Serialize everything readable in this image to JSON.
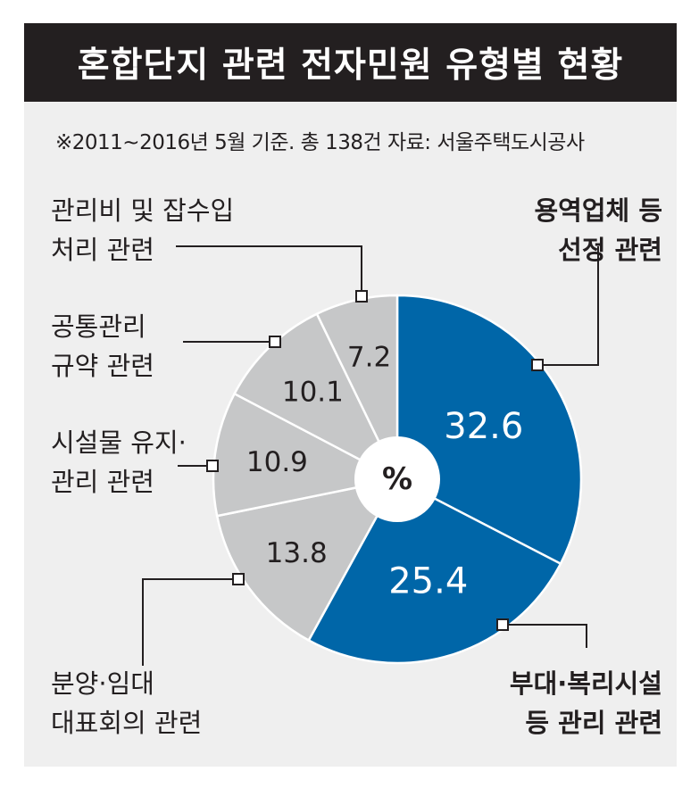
{
  "title": "혼합단지 관련 전자민원 유형별 현황",
  "subtitle": "※2011~2016년 5월 기준. 총 138건   자료: 서울주택도시공사",
  "center_label": "%",
  "colors": {
    "header_bg": "#231f20",
    "panel_bg": "#efefef",
    "highlight": "#0066a8",
    "muted": "#c6c7c8"
  },
  "labels": {
    "service": [
      "용역업체 등",
      "선정 관련"
    ],
    "facility": [
      "부대·복리시설",
      "등 관리 관련"
    ],
    "presale": [
      "분양·임대",
      "대표회의 관련"
    ],
    "maintenance": [
      "시설물 유지·",
      "관리 관련"
    ],
    "rules": [
      "공통관리",
      "규약 관련"
    ],
    "fees": [
      "관리비 및 잡수입",
      "처리 관련"
    ]
  },
  "chart_data": {
    "type": "pie",
    "unit": "%",
    "slices": [
      {
        "label": "용역업체 등 선정 관련",
        "value": 32.6,
        "display": "32.6",
        "color": "#0066a8",
        "text_color": "#ffffff"
      },
      {
        "label": "부대·복리시설 등 관리 관련",
        "value": 25.4,
        "display": "25.4",
        "color": "#0066a8",
        "text_color": "#ffffff"
      },
      {
        "label": "분양·임대 대표회의 관련",
        "value": 13.8,
        "display": "13.8",
        "color": "#c6c7c8",
        "text_color": "#231f20"
      },
      {
        "label": "시설물 유지·관리 관련",
        "value": 10.9,
        "display": "10.9",
        "color": "#c6c7c8",
        "text_color": "#231f20"
      },
      {
        "label": "공통관리 규약 관련",
        "value": 10.1,
        "display": "10.1",
        "color": "#c6c7c8",
        "text_color": "#231f20"
      },
      {
        "label": "관리비 및 잡수입 처리 관련",
        "value": 7.2,
        "display": "7.2",
        "color": "#c6c7c8",
        "text_color": "#231f20"
      }
    ]
  }
}
